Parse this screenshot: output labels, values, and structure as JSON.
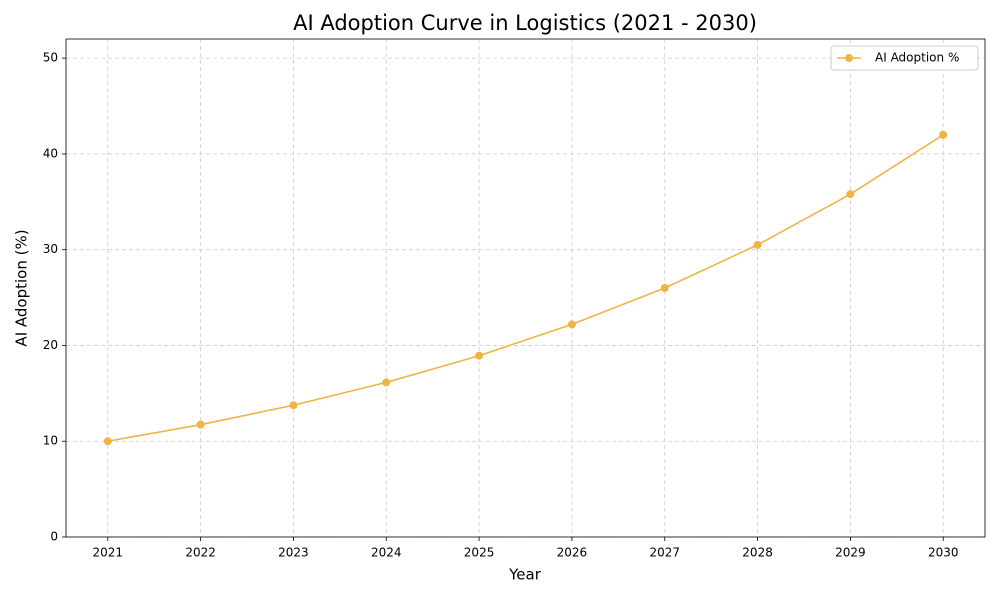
{
  "chart_data": {
    "type": "line",
    "title": "AI Adoption Curve in Logistics (2021 - 2030)",
    "x_label": "Year",
    "y_label": "AI Adoption (%)",
    "x": [
      2021,
      2022,
      2023,
      2024,
      2025,
      2026,
      2027,
      2028,
      2029,
      2030
    ],
    "series": [
      {
        "name": "AI Adoption %",
        "color": "#f0b445",
        "values": [
          10,
          11.73,
          13.76,
          16.14,
          18.93,
          22.2,
          26.0,
          30.5,
          35.8,
          42.0
        ]
      }
    ],
    "xlim": [
      2020.55,
      2030.45
    ],
    "xticks": [
      2021,
      2022,
      2023,
      2024,
      2025,
      2026,
      2027,
      2028,
      2029,
      2030
    ],
    "ylim": [
      0,
      52
    ],
    "yticks": [
      0,
      10,
      20,
      30,
      40,
      50
    ],
    "grid": true,
    "legend": "upper right"
  }
}
